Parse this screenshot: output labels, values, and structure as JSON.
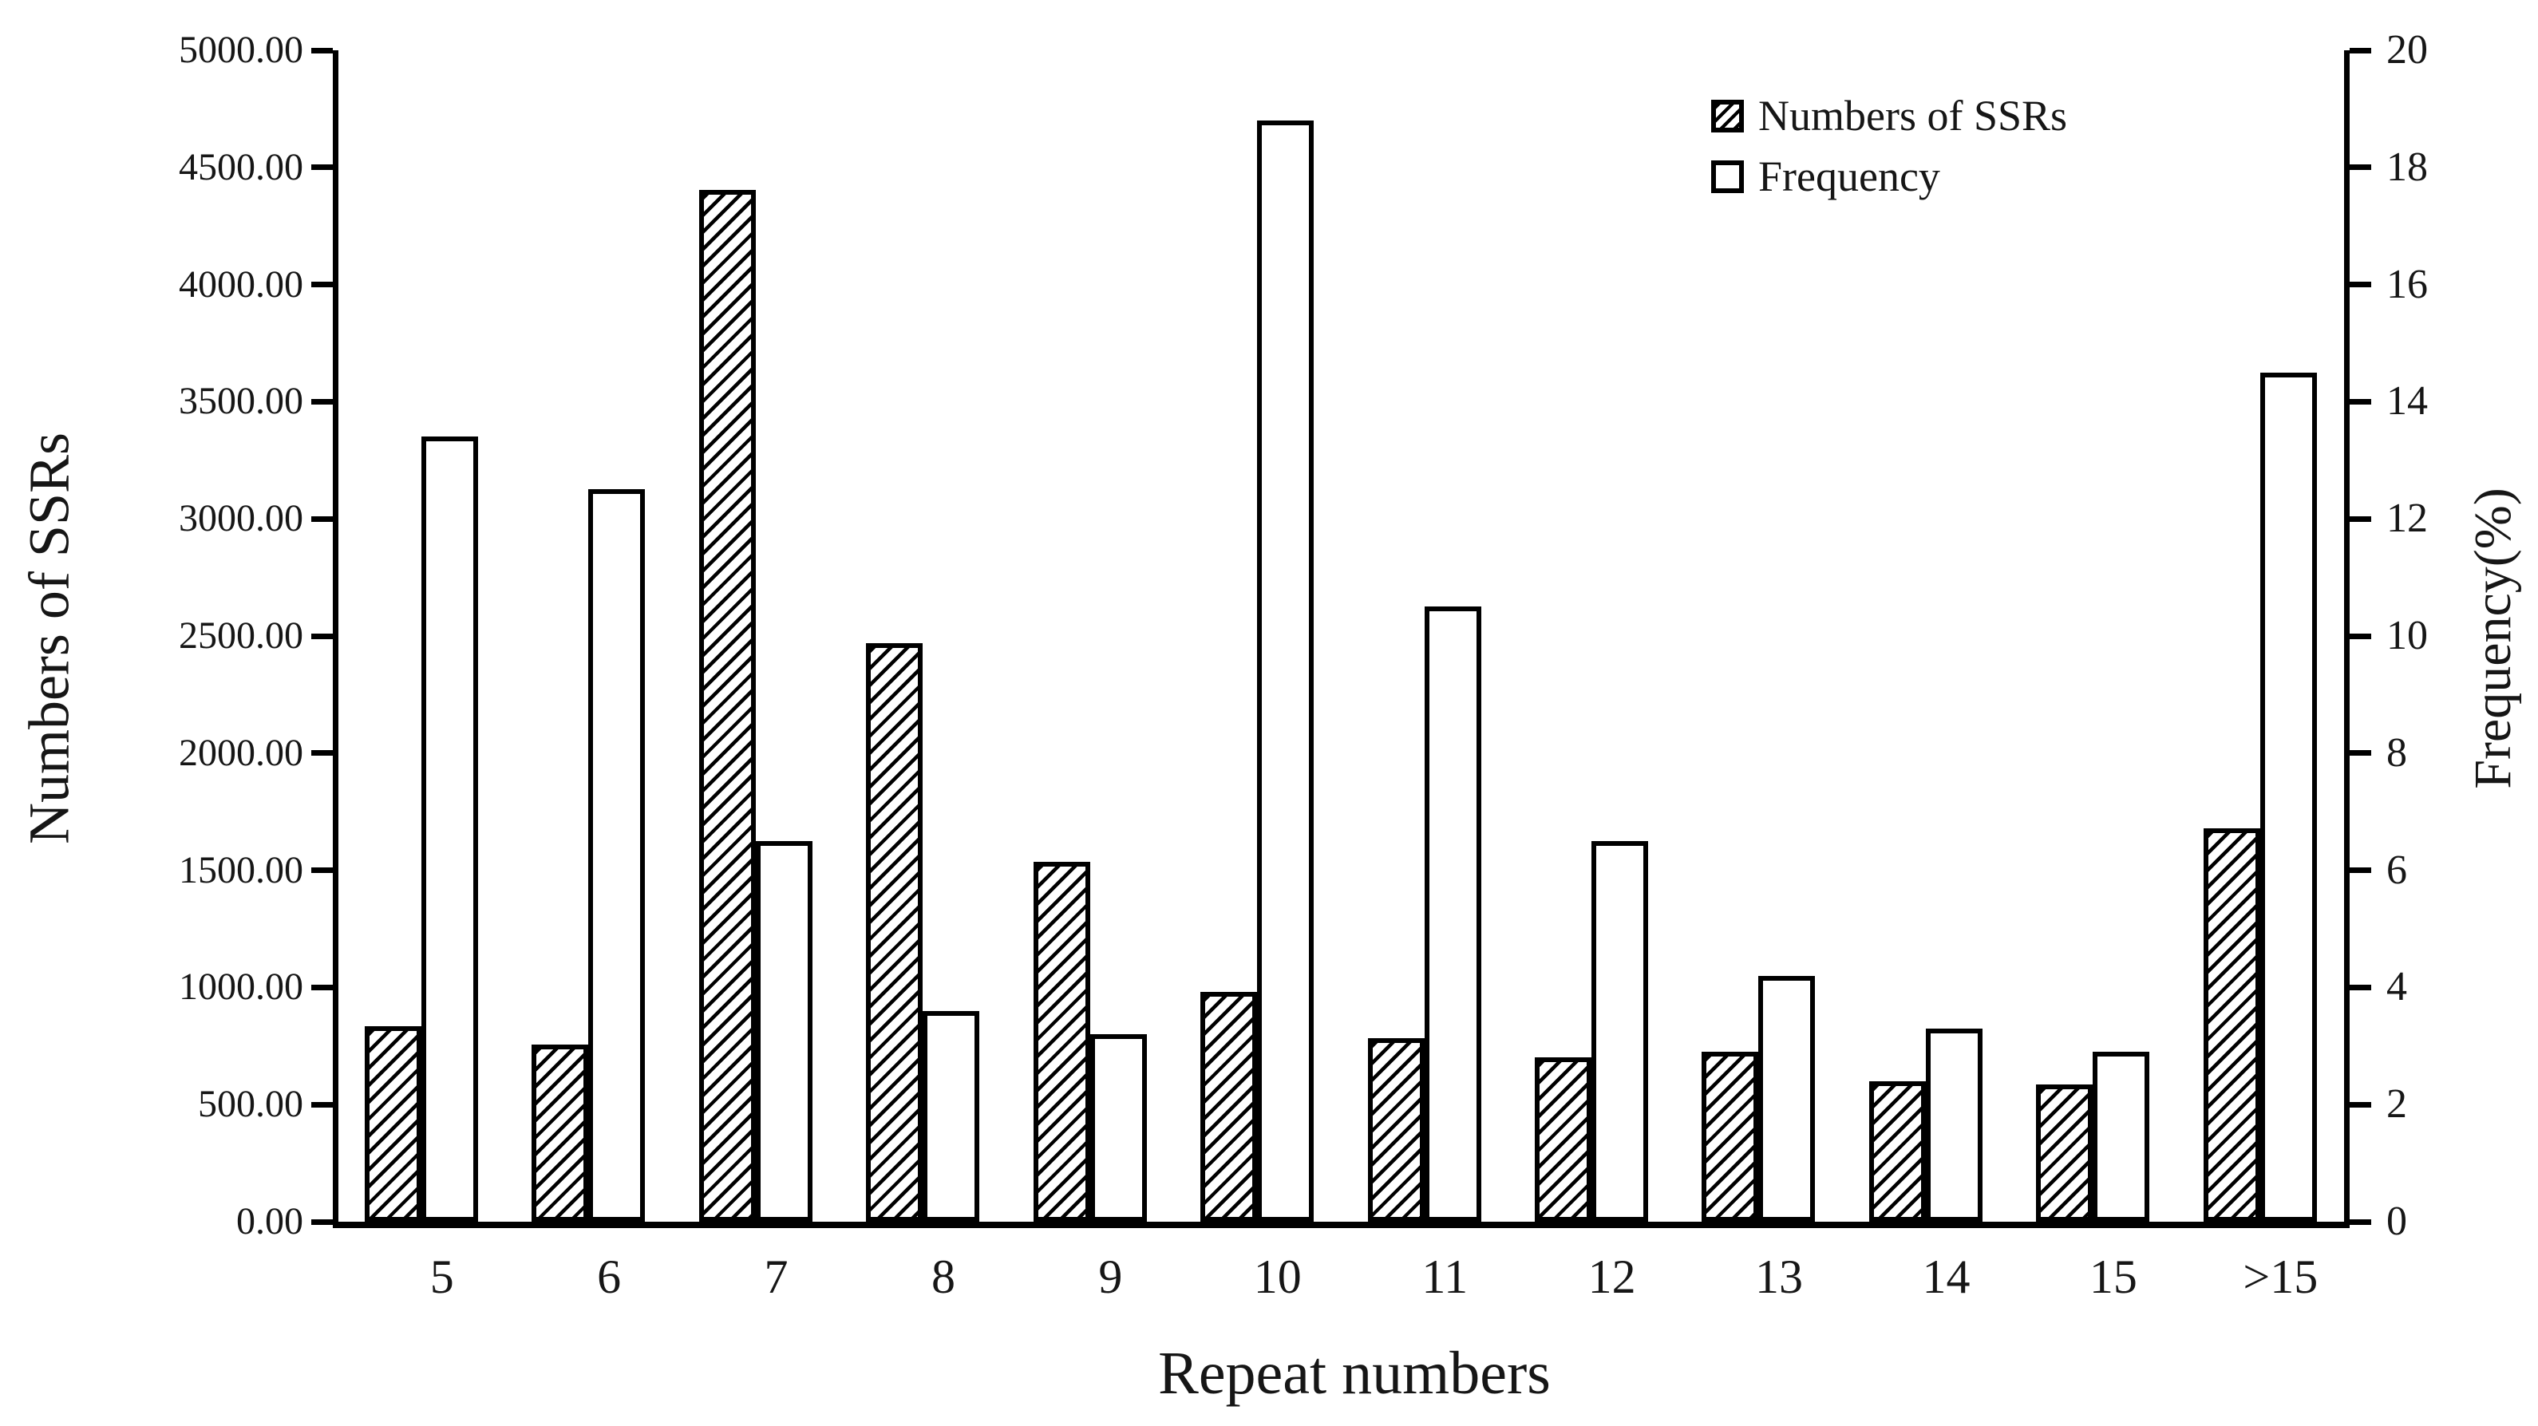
{
  "chart_data": {
    "type": "bar",
    "title": "",
    "categories": [
      "5",
      "6",
      "7",
      "8",
      "9",
      "10",
      "11",
      "12",
      "13",
      "14",
      "15",
      ">15"
    ],
    "series": [
      {
        "name": "Numbers of SSRs",
        "axis": "left",
        "style": "hatched",
        "values": [
          835,
          755,
          4405,
          2470,
          1535,
          980,
          785,
          700,
          725,
          600,
          585,
          1680
        ]
      },
      {
        "name": "Frequency",
        "axis": "right",
        "style": "plain",
        "values": [
          13.4,
          12.5,
          6.5,
          3.6,
          3.2,
          18.8,
          10.5,
          6.5,
          4.2,
          3.3,
          2.9,
          14.5
        ]
      }
    ],
    "xlabel": "Repeat numbers",
    "ylabel_left": "Numbers of SSRs",
    "ylabel_right": "Frequency(%)",
    "left_axis": {
      "min": 0,
      "max": 5000,
      "step": 500,
      "tick_labels": [
        "5000.00",
        "4500.00",
        "4000.00",
        "3500.00",
        "3000.00",
        "2500.00",
        "2000.00",
        "1500.00",
        "1000.00",
        "500.00",
        "0.00"
      ]
    },
    "right_axis": {
      "min": 0,
      "max": 20,
      "step": 2,
      "tick_labels": [
        "20",
        "18",
        "16",
        "14",
        "12",
        "10",
        "8",
        "6",
        "4",
        "2",
        "0"
      ]
    },
    "legend": {
      "position": "top-right",
      "entries": [
        "Numbers of SSRs",
        "Frequency"
      ]
    },
    "grid": false
  },
  "colors": {
    "bar_fill": "#ffffff",
    "bar_border": "#000000",
    "text": "#161616",
    "background": "#ffffff"
  }
}
